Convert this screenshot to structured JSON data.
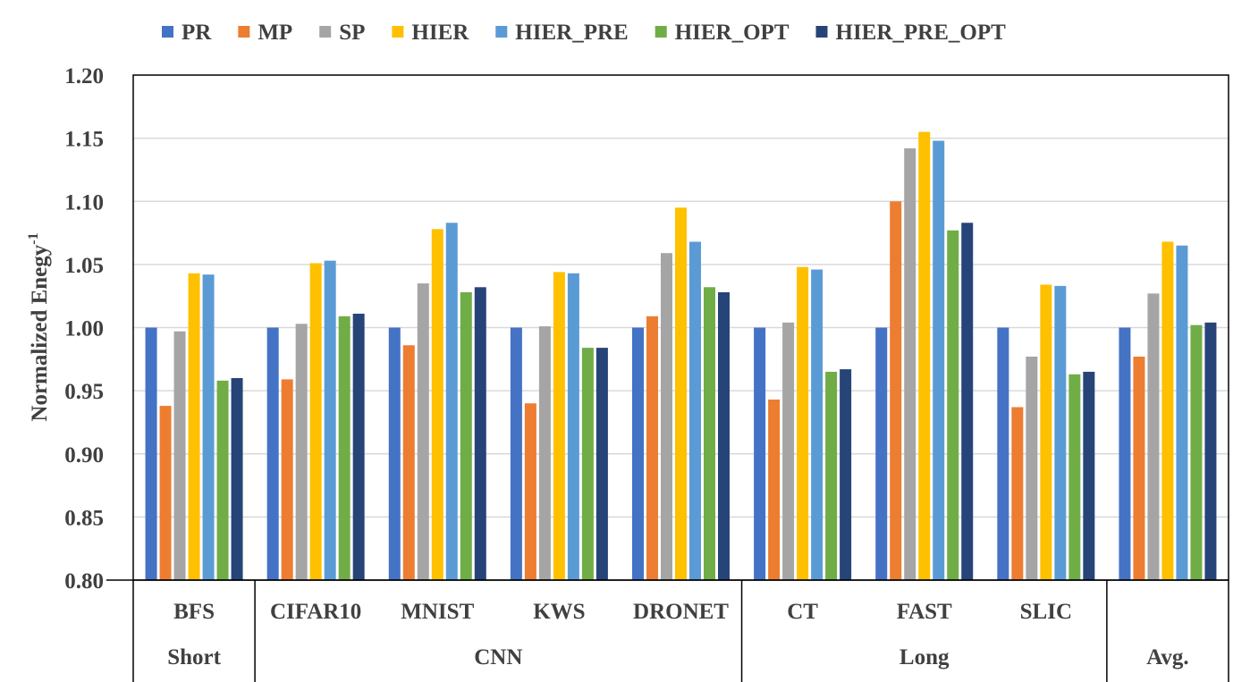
{
  "chart_data": {
    "type": "bar",
    "ylabel": "Normalized Enegy",
    "ylabel_superscript": "-1",
    "ylim": [
      0.8,
      1.2
    ],
    "yticks": [
      "0.80",
      "0.85",
      "0.90",
      "0.95",
      "1.00",
      "1.05",
      "1.10",
      "1.15",
      "1.20"
    ],
    "grid": true,
    "legend_position": "top",
    "categories": [
      "BFS",
      "CIFAR10",
      "MNIST",
      "KWS",
      "DRONET",
      "CT",
      "FAST",
      "SLIC",
      ""
    ],
    "groups": [
      {
        "label": "Short",
        "span": [
          0,
          0
        ]
      },
      {
        "label": "CNN",
        "span": [
          1,
          4
        ]
      },
      {
        "label": "Long",
        "span": [
          5,
          7
        ]
      },
      {
        "label": "Avg.",
        "span": [
          8,
          8
        ]
      }
    ],
    "series": [
      {
        "name": "PR",
        "color": "#4472C4",
        "values": [
          1.0,
          1.0,
          1.0,
          1.0,
          1.0,
          1.0,
          1.0,
          1.0,
          1.0
        ]
      },
      {
        "name": "MP",
        "color": "#ED7D31",
        "values": [
          0.938,
          0.959,
          0.986,
          0.94,
          1.009,
          0.943,
          1.1,
          0.937,
          0.977
        ]
      },
      {
        "name": "SP",
        "color": "#A5A5A5",
        "values": [
          0.997,
          1.003,
          1.035,
          1.001,
          1.059,
          1.004,
          1.142,
          0.977,
          1.027
        ]
      },
      {
        "name": "HIER",
        "color": "#FFC000",
        "values": [
          1.043,
          1.051,
          1.078,
          1.044,
          1.095,
          1.048,
          1.155,
          1.034,
          1.068
        ]
      },
      {
        "name": "HIER_PRE",
        "color": "#5B9BD5",
        "values": [
          1.042,
          1.053,
          1.083,
          1.043,
          1.068,
          1.046,
          1.148,
          1.033,
          1.065
        ]
      },
      {
        "name": "HIER_OPT",
        "color": "#70AD47",
        "values": [
          0.958,
          1.009,
          1.028,
          0.984,
          1.032,
          0.965,
          1.077,
          0.963,
          1.002
        ]
      },
      {
        "name": "HIER_PRE_OPT",
        "color": "#264478",
        "values": [
          0.96,
          1.011,
          1.032,
          0.984,
          1.028,
          0.967,
          1.083,
          0.965,
          1.004
        ]
      }
    ]
  }
}
